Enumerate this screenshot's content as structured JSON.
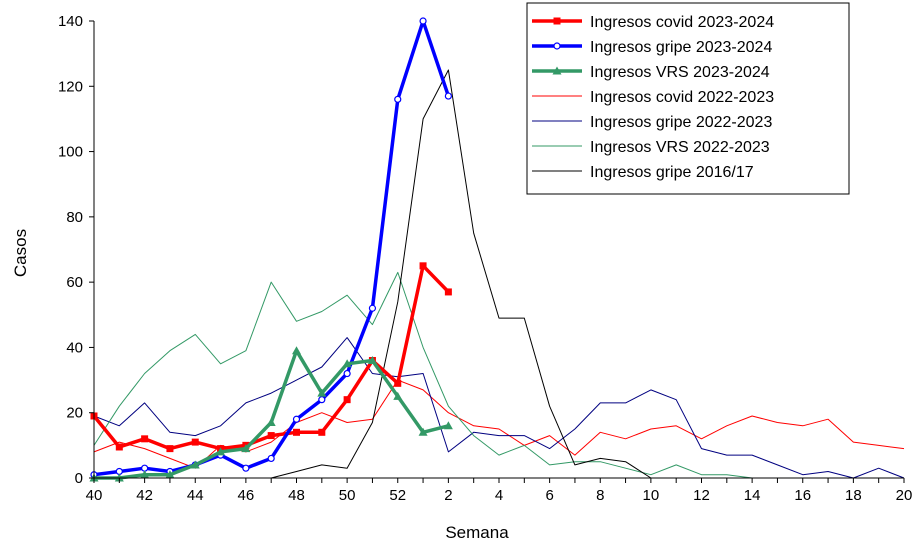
{
  "chart_data": {
    "type": "line",
    "xlabel": "Semana",
    "ylabel": "Casos",
    "ylim": [
      0,
      140
    ],
    "yticks": [
      0,
      20,
      40,
      60,
      80,
      100,
      120,
      140
    ],
    "x_categories": [
      "40",
      "41",
      "42",
      "43",
      "44",
      "45",
      "46",
      "47",
      "48",
      "49",
      "50",
      "51",
      "52",
      "1",
      "2",
      "3",
      "4",
      "5",
      "6",
      "7",
      "8",
      "9",
      "10",
      "11",
      "12",
      "13",
      "14",
      "15",
      "16",
      "17",
      "18",
      "19",
      "20"
    ],
    "x_tick_labels": [
      "40",
      "42",
      "44",
      "46",
      "48",
      "50",
      "52",
      "2",
      "4",
      "6",
      "8",
      "10",
      "12",
      "14",
      "16",
      "18",
      "20"
    ],
    "legend_position": "top-right",
    "grid": false,
    "series": [
      {
        "name": "Ingresos covid 2023-2024",
        "color": "#ff0000",
        "marker": "square",
        "width": 3.5,
        "values": [
          19,
          9.5,
          12,
          9,
          11,
          9,
          10,
          13,
          14,
          14,
          24,
          36,
          29,
          65,
          57
        ]
      },
      {
        "name": "Ingresos gripe 2023-2024",
        "color": "#0000ff",
        "marker": "circle",
        "width": 3.5,
        "values": [
          1,
          2,
          3,
          2,
          4,
          7,
          3,
          6,
          18,
          24,
          32,
          52,
          116,
          140,
          117
        ]
      },
      {
        "name": "Ingresos VRS 2023-2024",
        "color": "#339966",
        "marker": "triangle",
        "width": 3.5,
        "values": [
          0,
          0,
          1,
          1,
          4,
          8,
          9,
          17,
          39,
          26,
          35,
          36,
          25,
          14,
          16
        ]
      },
      {
        "name": "Ingresos covid 2022-2023",
        "color": "#ff0000",
        "marker": "none",
        "width": 1,
        "values": [
          8,
          11,
          9,
          6,
          3,
          10,
          8,
          11,
          17,
          20,
          17,
          18,
          30,
          27,
          20,
          16,
          15,
          10,
          13,
          7,
          14,
          12,
          15,
          16,
          12,
          16,
          19,
          17,
          16,
          18,
          11,
          10,
          9
        ]
      },
      {
        "name": "Ingresos gripe 2022-2023",
        "color": "#000080",
        "marker": "none",
        "width": 1,
        "values": [
          19,
          16,
          23,
          14,
          13,
          16,
          23,
          26,
          30,
          34,
          43,
          32,
          31,
          32,
          8,
          14,
          13,
          13,
          9,
          15,
          23,
          23,
          27,
          24,
          9,
          7,
          7,
          4,
          1,
          2,
          0,
          3,
          0
        ]
      },
      {
        "name": "Ingresos VRS 2022-2023",
        "color": "#339966",
        "marker": "none",
        "width": 1,
        "values": [
          10,
          22,
          32,
          39,
          44,
          35,
          39,
          60,
          48,
          51,
          56,
          47,
          63,
          40,
          22,
          13,
          7,
          10,
          4,
          5,
          5,
          3,
          1,
          4,
          1,
          1,
          0,
          0,
          0,
          0,
          0,
          0,
          0
        ]
      },
      {
        "name": "Ingresos gripe 2016/17",
        "color": "#000000",
        "marker": "none",
        "width": 1,
        "values": [
          0,
          0,
          0,
          0,
          0,
          0,
          0,
          0,
          2,
          4,
          3,
          17,
          54,
          110,
          125,
          75,
          49,
          49,
          22,
          4,
          6,
          5,
          0,
          0,
          0,
          0,
          0,
          0,
          0,
          0,
          0,
          0,
          0
        ]
      }
    ]
  }
}
